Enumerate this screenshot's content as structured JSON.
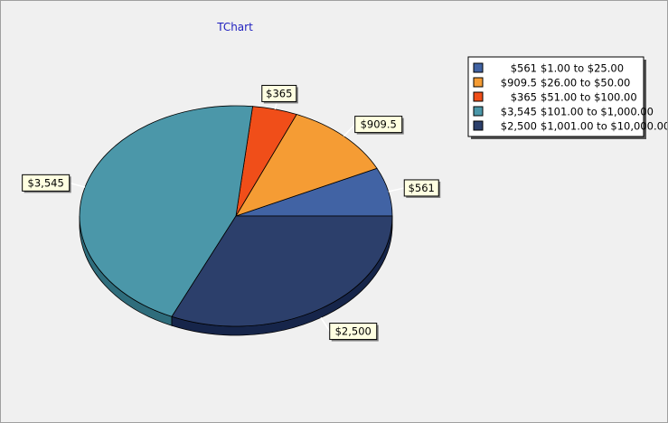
{
  "chart_data": {
    "type": "pie",
    "title": "TChart",
    "legend_position": "top-right",
    "slices": [
      {
        "value": 561,
        "label": "$561",
        "legend_value": "$561",
        "range": "$1.00 to $25.00",
        "color": "#4163a4",
        "side_color": "#26407a"
      },
      {
        "value": 909.5,
        "label": "$909.5",
        "legend_value": "$909.5",
        "range": "$26.00 to $50.00",
        "color": "#f59c34",
        "side_color": "#b86f1c"
      },
      {
        "value": 365,
        "label": "$365",
        "legend_value": "$365",
        "range": "$51.00 to $100.00",
        "color": "#f04e19",
        "side_color": "#a8330c"
      },
      {
        "value": 3545,
        "label": "$3,545",
        "legend_value": "$3,545",
        "range": "$101.00 to $1,000.00",
        "color": "#4b97a9",
        "side_color": "#2f6d7c"
      },
      {
        "value": 2500,
        "label": "$2,500",
        "legend_value": "$2,500",
        "range": "$1,001.00 to $10,000.00",
        "color": "#2c3f6b",
        "side_color": "#16254a"
      }
    ]
  }
}
